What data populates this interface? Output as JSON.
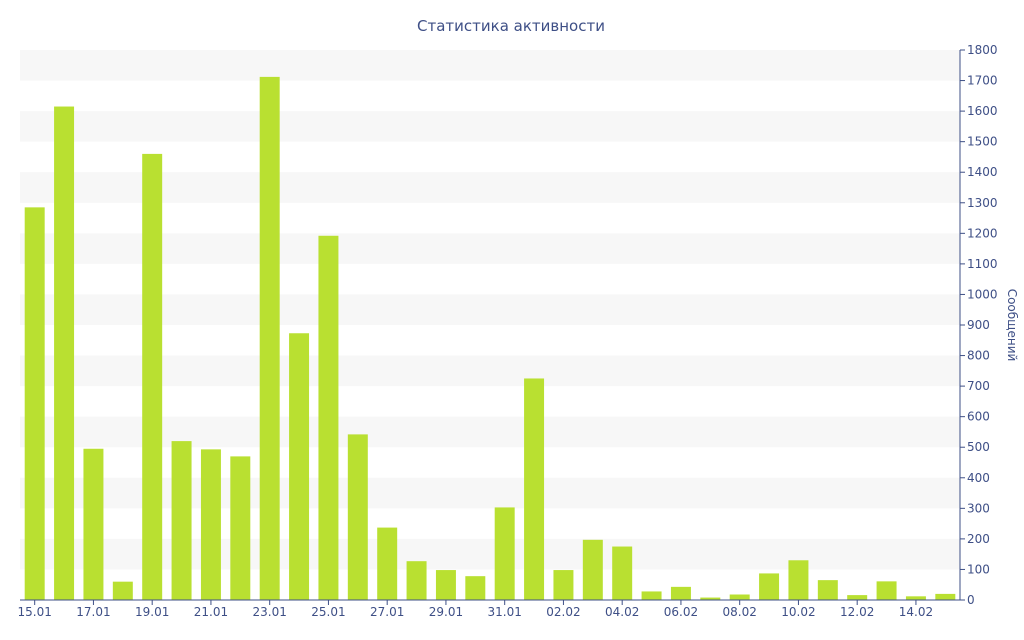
{
  "chart_data": {
    "type": "bar",
    "title": "Статистика активности",
    "xlabel": "",
    "ylabel": "Сообщений",
    "ylim": [
      0,
      1800
    ],
    "y_ticks": [
      0,
      100,
      200,
      300,
      400,
      500,
      600,
      700,
      800,
      900,
      1000,
      1100,
      1200,
      1300,
      1400,
      1500,
      1600,
      1700,
      1800
    ],
    "y_axis_side": "right",
    "grid": "alternating horizontal bands",
    "legend": "none",
    "categories": [
      "15.01",
      "16.01",
      "17.01",
      "18.01",
      "19.01",
      "20.01",
      "21.01",
      "22.01",
      "23.01",
      "24.01",
      "25.01",
      "26.01",
      "27.01",
      "28.01",
      "29.01",
      "30.01",
      "31.01",
      "01.02",
      "02.02",
      "03.02",
      "04.02",
      "05.02",
      "06.02",
      "07.02",
      "08.02",
      "09.02",
      "10.02",
      "11.02",
      "12.02",
      "13.02",
      "14.02",
      "15.02"
    ],
    "x_tick_labels": [
      "15.01",
      "17.01",
      "19.01",
      "21.01",
      "23.01",
      "25.01",
      "27.01",
      "29.01",
      "31.01",
      "02.02",
      "04.02",
      "06.02",
      "08.02",
      "10.02",
      "12.02",
      "14.02"
    ],
    "values": [
      1285,
      1615,
      495,
      60,
      1460,
      520,
      493,
      470,
      1712,
      873,
      1192,
      542,
      237,
      127,
      98,
      78,
      303,
      725,
      98,
      197,
      175,
      28,
      43,
      8,
      18,
      87,
      130,
      65,
      16,
      61,
      12,
      20
    ],
    "colors": {
      "bar": "#b9e031",
      "text": "#3e4f86",
      "axis": "#3e4f86",
      "band": "#f7f7f7",
      "background": "#ffffff"
    }
  }
}
